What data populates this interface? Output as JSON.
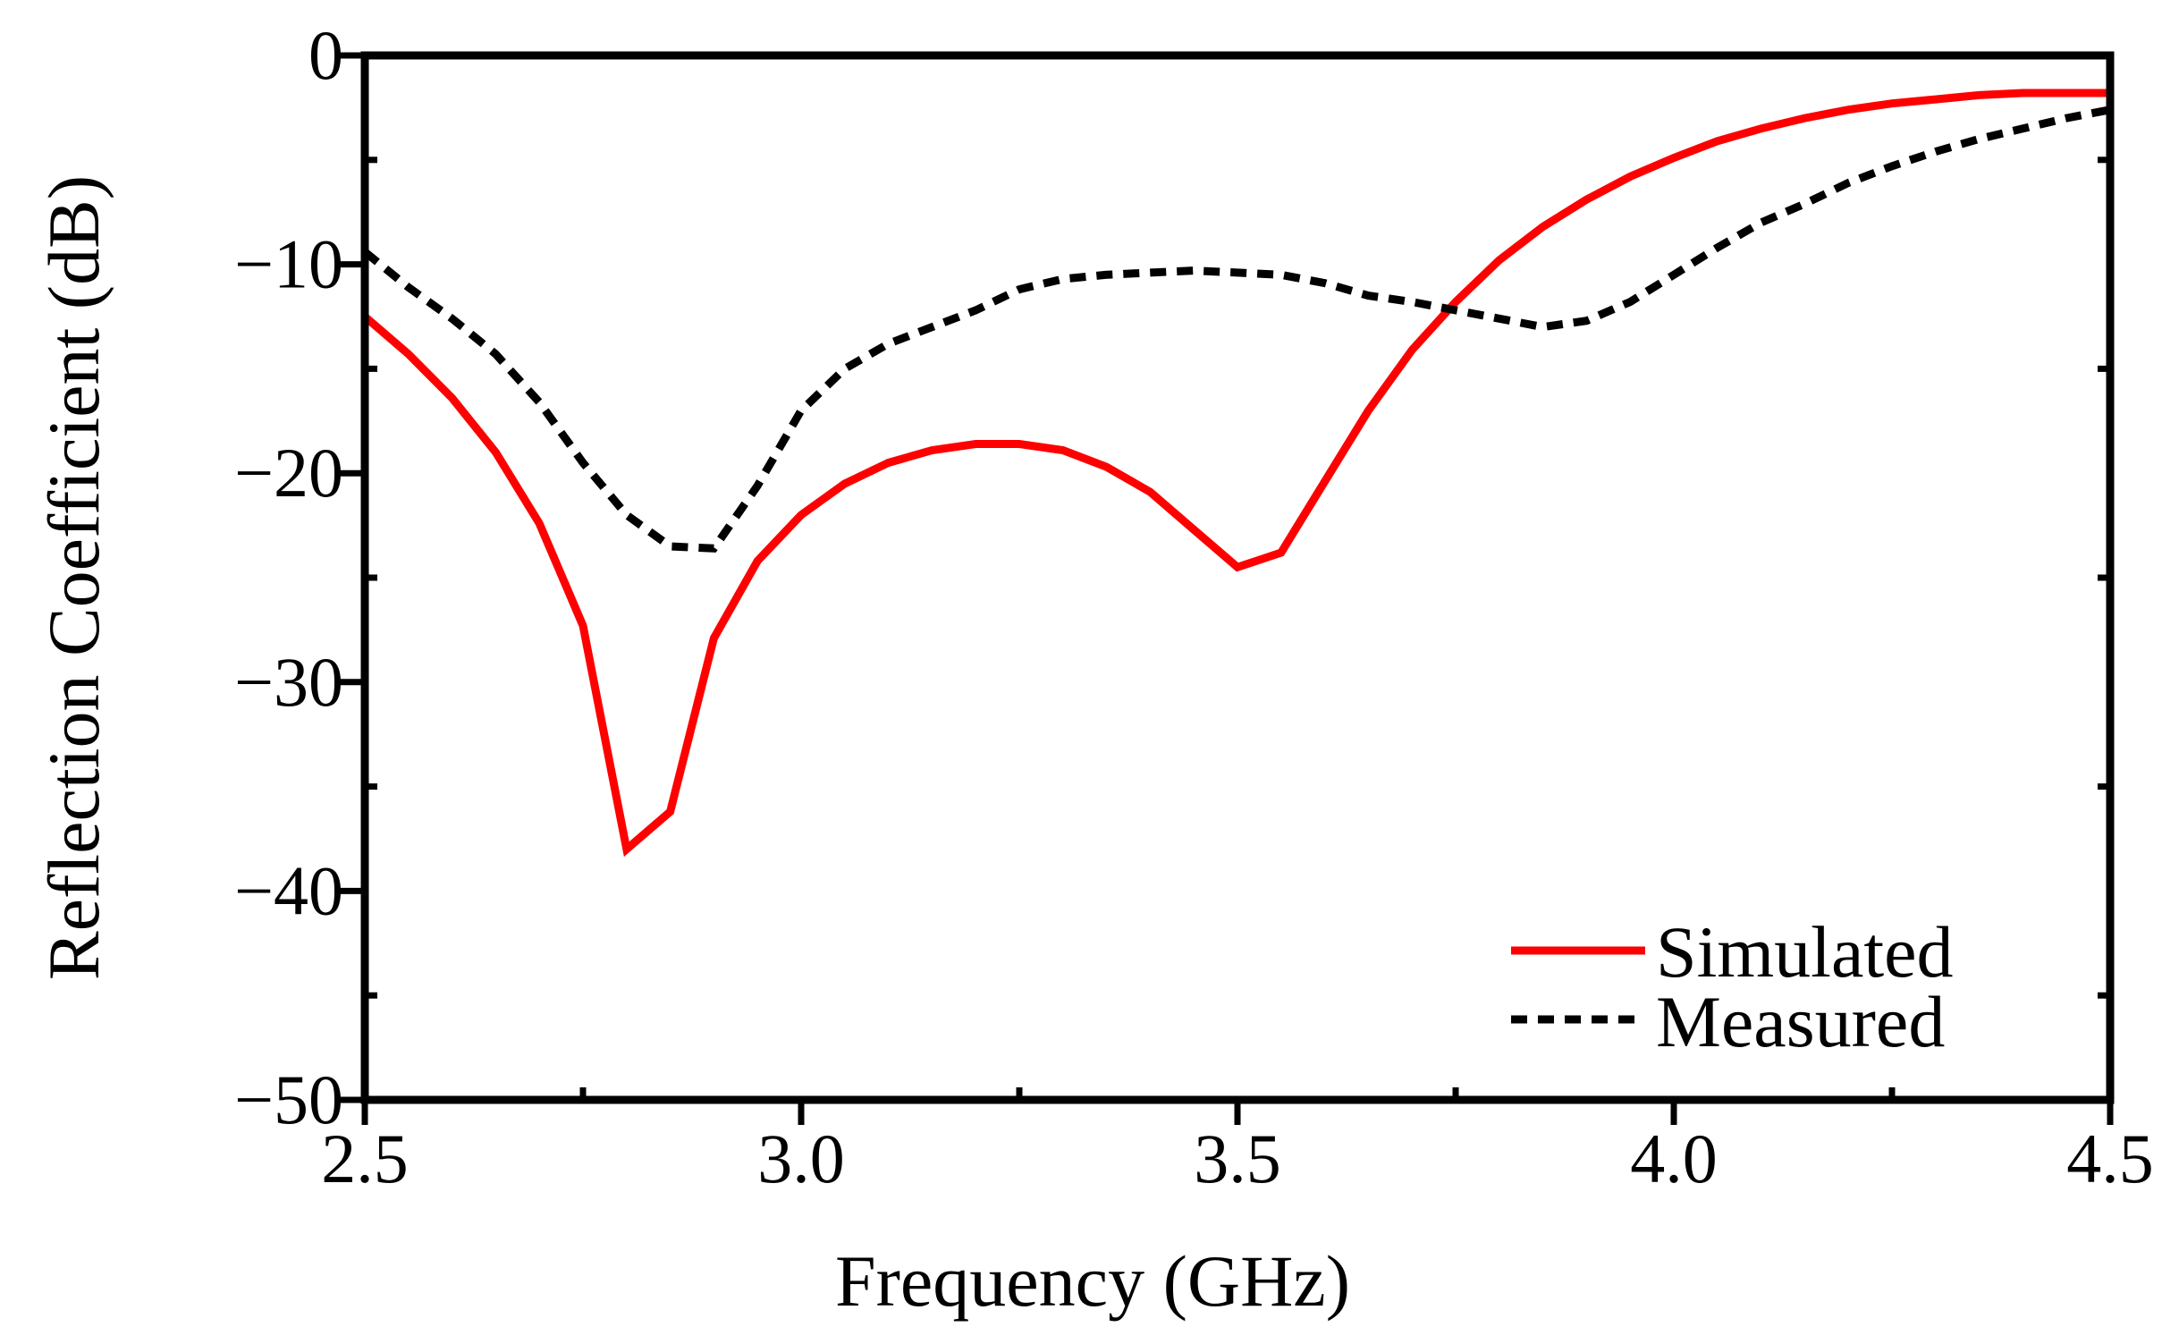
{
  "chart_data": {
    "type": "line",
    "title": "",
    "xlabel": "Frequency (GHz)",
    "ylabel": "Reflection Coefficient (dB)",
    "xlim": [
      2.5,
      4.5
    ],
    "ylim": [
      -50,
      0
    ],
    "xticks": [
      2.5,
      3.0,
      3.5,
      4.0,
      4.5
    ],
    "xtick_labels": [
      "2.5",
      "3.0",
      "3.5",
      "4.0",
      "4.5"
    ],
    "yticks": [
      0,
      -10,
      -20,
      -30,
      -40,
      -50
    ],
    "ytick_labels": [
      "0",
      "−10",
      "−20",
      "−30",
      "−40",
      "−50"
    ],
    "grid": false,
    "legend_position": "bottom-right",
    "series": [
      {
        "name": "Simulated",
        "style": "solid",
        "color": "#ff0000",
        "x": [
          2.5,
          2.55,
          2.6,
          2.65,
          2.7,
          2.75,
          2.8,
          2.85,
          2.9,
          2.95,
          3.0,
          3.05,
          3.1,
          3.15,
          3.2,
          3.25,
          3.3,
          3.35,
          3.4,
          3.45,
          3.5,
          3.55,
          3.6,
          3.65,
          3.7,
          3.75,
          3.8,
          3.85,
          3.9,
          3.95,
          4.0,
          4.05,
          4.1,
          4.15,
          4.2,
          4.25,
          4.3,
          4.35,
          4.4,
          4.45,
          4.5
        ],
        "y": [
          -12.5,
          -14.3,
          -16.4,
          -19.0,
          -22.4,
          -27.3,
          -38.0,
          -36.2,
          -27.9,
          -24.2,
          -22.0,
          -20.5,
          -19.5,
          -18.9,
          -18.6,
          -18.6,
          -18.9,
          -19.7,
          -20.9,
          -22.7,
          -24.5,
          -23.8,
          -20.4,
          -17.0,
          -14.1,
          -11.8,
          -9.8,
          -8.2,
          -6.9,
          -5.8,
          -4.9,
          -4.1,
          -3.5,
          -3.0,
          -2.6,
          -2.3,
          -2.1,
          -1.9,
          -1.8,
          -1.8,
          -1.8
        ]
      },
      {
        "name": "Measured",
        "style": "dashed",
        "color": "#000000",
        "x": [
          2.5,
          2.55,
          2.6,
          2.65,
          2.7,
          2.75,
          2.8,
          2.85,
          2.9,
          2.95,
          3.0,
          3.05,
          3.1,
          3.15,
          3.2,
          3.25,
          3.3,
          3.35,
          3.4,
          3.45,
          3.5,
          3.55,
          3.6,
          3.65,
          3.7,
          3.75,
          3.8,
          3.85,
          3.9,
          3.95,
          4.0,
          4.05,
          4.1,
          4.15,
          4.2,
          4.25,
          4.3,
          4.35,
          4.4,
          4.45,
          4.5
        ],
        "y": [
          -9.4,
          -11.1,
          -12.6,
          -14.3,
          -16.6,
          -19.5,
          -22.0,
          -23.5,
          -23.6,
          -20.6,
          -17.0,
          -15.0,
          -13.8,
          -13.0,
          -12.2,
          -11.2,
          -10.7,
          -10.5,
          -10.4,
          -10.3,
          -10.4,
          -10.5,
          -10.9,
          -11.5,
          -11.8,
          -12.2,
          -12.6,
          -13.0,
          -12.7,
          -11.8,
          -10.5,
          -9.2,
          -8.0,
          -7.1,
          -6.1,
          -5.3,
          -4.6,
          -4.0,
          -3.5,
          -3.0,
          -2.6
        ]
      }
    ]
  }
}
